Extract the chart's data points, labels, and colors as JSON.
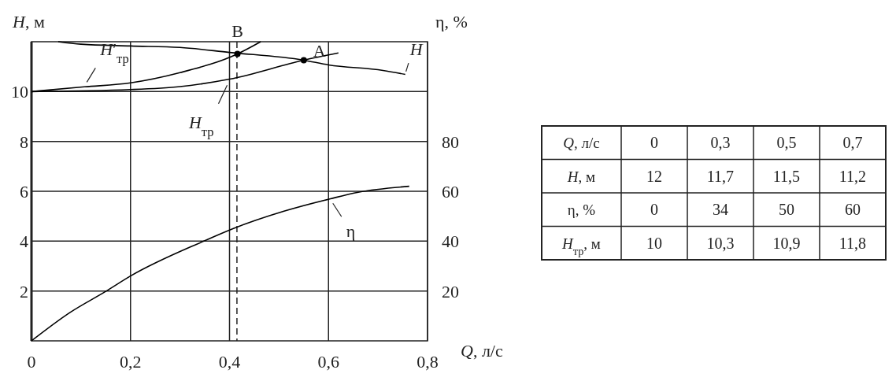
{
  "chart_data": [
    {
      "type": "line",
      "xlabel": "Q, л/с",
      "ylabel": "H, м",
      "y2label": "η, %",
      "xlim": [
        0,
        0.8
      ],
      "xticks": [
        0,
        {
          "value": 0.2,
          "label": "0,2"
        },
        {
          "value": 0.4,
          "label": "0,4"
        },
        {
          "value": 0.6,
          "label": "0,6"
        },
        {
          "value": 0.8,
          "label": "0,8"
        }
      ],
      "ylim": [
        0,
        12
      ],
      "yticks": [
        2,
        4,
        6,
        8,
        10
      ],
      "y2lim": [
        0,
        120
      ],
      "y2ticks": [
        20,
        40,
        60,
        80
      ],
      "grid": true,
      "marker": "none",
      "line_style": "solid",
      "series": [
        {
          "name": "H",
          "color": "#000000",
          "x": [
            0.054,
            0.1,
            0.2,
            0.3,
            0.4,
            0.55,
            0.6,
            0.71,
            0.755
          ],
          "values": [
            12,
            11.9,
            11.83,
            11.77,
            11.57,
            11.26,
            11.07,
            10.85,
            10.69
          ]
        },
        {
          "name": "H′$_{тр}$",
          "color": "#000000",
          "x": [
            0,
            0.107,
            0.2,
            0.3,
            0.416,
            0.463
          ],
          "values": [
            10,
            10.19,
            10.35,
            10.76,
            11.51,
            12
          ]
        },
        {
          "name": "H$_{тр}$",
          "color": "#000000",
          "x": [
            0,
            0.2,
            0.3,
            0.4,
            0.55,
            0.62
          ],
          "values": [
            10,
            10.08,
            10.2,
            10.5,
            11.26,
            11.55
          ]
        },
        {
          "name": "η",
          "color": "#000000",
          "axis": "y2",
          "x": [
            0,
            0.078,
            0.148,
            0.2,
            0.348,
            0.407,
            0.51,
            0.604,
            0.66,
            0.763
          ],
          "values": [
            0,
            11.4,
            19.6,
            26,
            40,
            45,
            52,
            57,
            59.6,
            62
          ]
        },
        {
          "type": "scatter",
          "color": "#000000",
          "marker": "circle",
          "x": [
            0.416,
            0.55
          ],
          "values": [
            11.51,
            11.26
          ]
        }
      ],
      "ref_lines": [
        {
          "axis": "x",
          "value": 0.415,
          "line_style": "dashed"
        }
      ],
      "annotations": [
        {
          "text": "B",
          "x": 0.416,
          "y": 11.51
        },
        {
          "text": "A",
          "x": 0.55,
          "y": 11.26
        }
      ]
    },
    {
      "type": "other",
      "categories": [
        "Q, л/с",
        "H, м",
        "η, %",
        "H$_{тр}$, м"
      ],
      "annotations": [
        "0",
        "0,3",
        "0,5",
        "0,7",
        "12",
        "11,7",
        "11,5",
        "11,2",
        "0",
        "34",
        "50",
        "60",
        "10",
        "10,3",
        "10,9",
        "11,8"
      ]
    }
  ]
}
